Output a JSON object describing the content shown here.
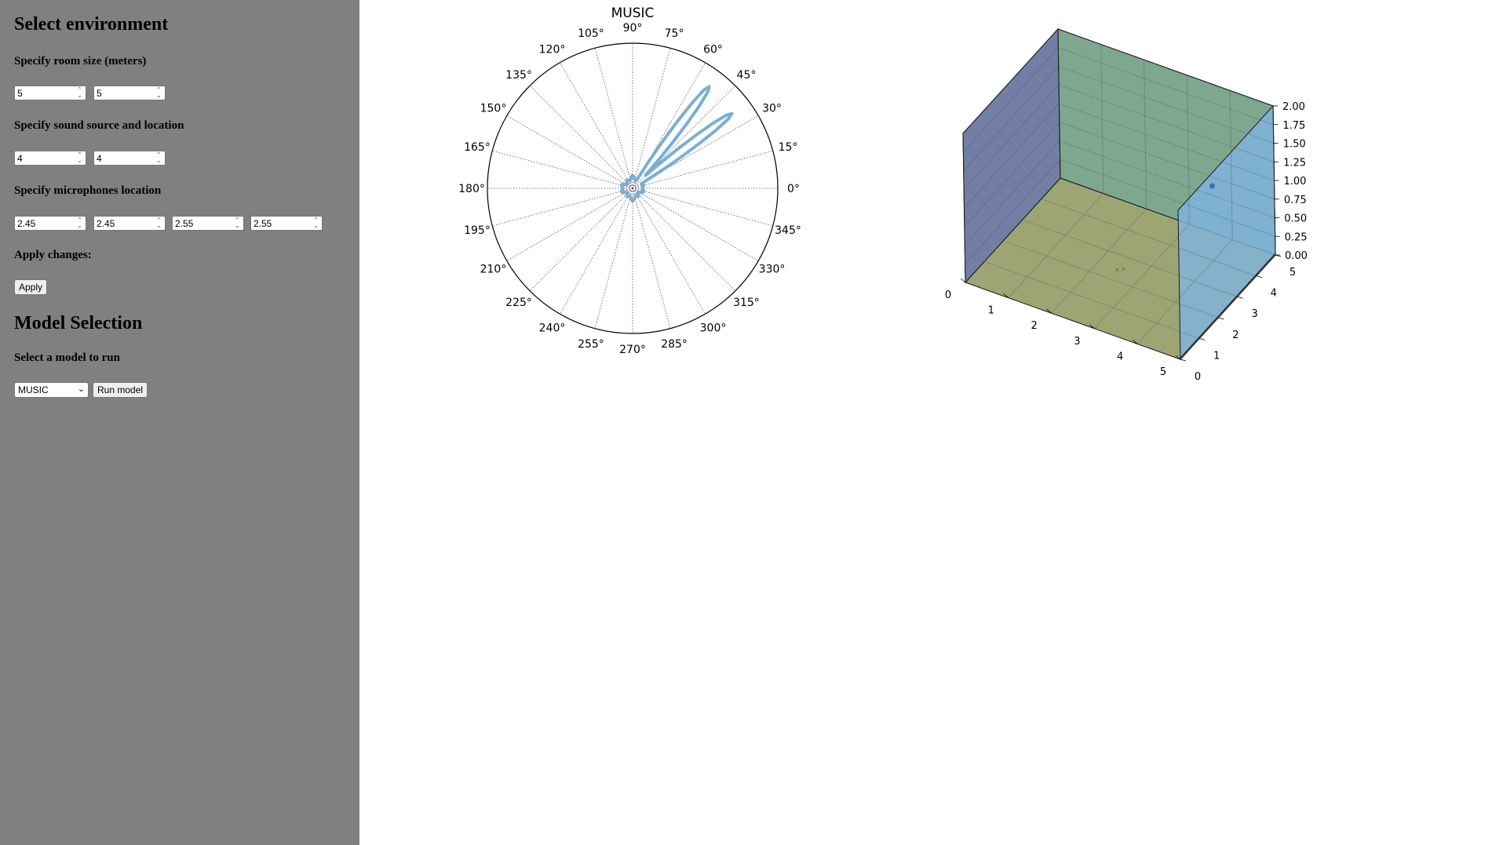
{
  "env": {
    "title": "Select environment",
    "room_label": "Specify room size (meters)",
    "room": [
      "5",
      "5"
    ],
    "source_label": "Specify sound source and location",
    "source": [
      "4",
      "4"
    ],
    "mics_label": "Specify microphones location",
    "mics": [
      "2.45",
      "2.45",
      "2.55",
      "2.55"
    ],
    "apply_label": "Apply changes:",
    "apply_button": "Apply"
  },
  "model": {
    "title": "Model Selection",
    "select_label": "Select a model to run",
    "selected": "MUSIC",
    "run_button": "Run model"
  },
  "chart_data": [
    {
      "type": "polar",
      "title": "MUSIC",
      "angle_ticks": [
        "0°",
        "15°",
        "30°",
        "45°",
        "60°",
        "75°",
        "90°",
        "105°",
        "120°",
        "135°",
        "150°",
        "165°",
        "180°",
        "195°",
        "210°",
        "225°",
        "240°",
        "255°",
        "270°",
        "285°",
        "300°",
        "315°",
        "330°",
        "345°"
      ],
      "peaks_deg": [
        37,
        53
      ],
      "series_color": "#7bafd4",
      "grid": true
    },
    {
      "type": "3d-room",
      "x_ticks": [
        "0",
        "1",
        "2",
        "3",
        "4",
        "5"
      ],
      "y_ticks": [
        "0",
        "1",
        "2",
        "3",
        "4",
        "5"
      ],
      "z_ticks": [
        "0.00",
        "0.25",
        "0.50",
        "0.75",
        "1.00",
        "1.25",
        "1.50",
        "1.75",
        "2.00"
      ],
      "room_size": [
        5,
        5,
        2
      ],
      "source": [
        4,
        4,
        1
      ],
      "wall_colors": [
        "#5d6a96",
        "#6a9a7e",
        "#7fb4e0",
        "#98a06e",
        "#a7b2ee"
      ]
    }
  ]
}
